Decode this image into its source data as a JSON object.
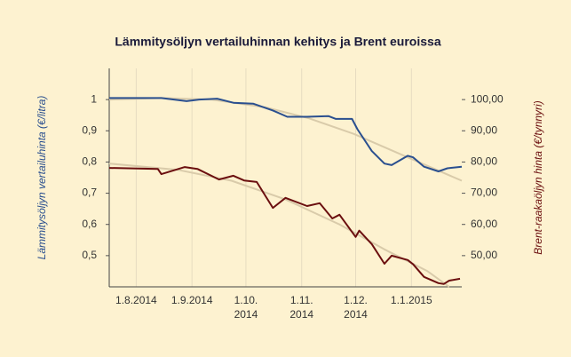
{
  "chart_data": {
    "type": "line",
    "title": "Lämmitysöljyn vertailuhinnan kehitys ja Brent euroissa",
    "ylabel": "Lämmitysöljyn vertailuhinta (€/litra)",
    "y2label": "Brent-raakaöljyn hinta (€/tynnyri)",
    "xlim": [
      "2014-07-17",
      "2015-01-29"
    ],
    "xticks": [
      {
        "value": "2014-08-01",
        "label": "1.8.2014"
      },
      {
        "value": "2014-09-01",
        "label": "1.9.2014"
      },
      {
        "value": "2014-10-01",
        "label": "1.10. 2014"
      },
      {
        "value": "2014-11-01",
        "label": "1.11. 2014"
      },
      {
        "value": "2014-12-01",
        "label": "1.12. 2014"
      },
      {
        "value": "2015-01-01",
        "label": "1.1.2015"
      }
    ],
    "ylim": [
      0.4,
      1.1
    ],
    "yticks": [
      {
        "value": 0.5,
        "label": "0,5"
      },
      {
        "value": 0.6,
        "label": "0,6"
      },
      {
        "value": 0.7,
        "label": "0,7"
      },
      {
        "value": 0.8,
        "label": "0,8"
      },
      {
        "value": 0.9,
        "label": "0,9"
      },
      1
    ],
    "y2lim": [
      40,
      110
    ],
    "y2ticks": [
      {
        "value": 50,
        "label": "50,00"
      },
      {
        "value": 60,
        "label": "60,00"
      },
      {
        "value": 70,
        "label": "70,00"
      },
      {
        "value": 80,
        "label": "80,00"
      },
      {
        "value": 90,
        "label": "90,00"
      },
      {
        "value": 100,
        "label": "100,00"
      }
    ],
    "x_grid": true,
    "series": [
      {
        "color": "#d9cbaa",
        "x": [
          "2014-07-17",
          "2014-08-15",
          "2014-09-12",
          "2014-10-12",
          "2014-11-05",
          "2014-11-30",
          "2014-12-24",
          "2015-01-29"
        ],
        "values": [
          1.0,
          1.005,
          1.0,
          0.975,
          0.94,
          0.89,
          0.83,
          0.74
        ]
      },
      {
        "color": "#d9cbaa",
        "axis": "y2",
        "x": [
          "2014-07-17",
          "2014-08-24",
          "2014-09-23",
          "2014-10-23",
          "2014-11-22",
          "2014-12-17",
          "2015-01-10",
          "2015-01-22"
        ],
        "values": [
          79.5,
          77.5,
          74,
          68,
          60,
          52,
          45,
          40
        ]
      },
      {
        "color": "#2a4f8f",
        "x": [
          "2014-07-17",
          "2014-08-15",
          "2014-08-29",
          "2014-09-05",
          "2014-09-15",
          "2014-09-24",
          "2014-10-05",
          "2014-10-16",
          "2014-10-24",
          "2014-11-04",
          "2014-11-16",
          "2014-11-20",
          "2014-11-29",
          "2014-12-02",
          "2014-12-10",
          "2014-12-17",
          "2014-12-21",
          "2014-12-30",
          "2015-01-02",
          "2015-01-08",
          "2015-01-16",
          "2015-01-21",
          "2015-01-29"
        ],
        "values": [
          1.005,
          1.005,
          0.995,
          1.0,
          1.003,
          0.99,
          0.987,
          0.965,
          0.945,
          0.945,
          0.947,
          0.938,
          0.938,
          0.905,
          0.835,
          0.795,
          0.79,
          0.82,
          0.815,
          0.785,
          0.77,
          0.78,
          0.785
        ]
      },
      {
        "color": "#6b0f0f",
        "axis": "y2",
        "x": [
          "2014-07-17",
          "2014-08-13",
          "2014-08-15",
          "2014-08-28",
          "2014-09-04",
          "2014-09-16",
          "2014-09-24",
          "2014-09-30",
          "2014-10-07",
          "2014-10-16",
          "2014-10-23",
          "2014-11-04",
          "2014-11-11",
          "2014-11-18",
          "2014-11-22",
          "2014-12-01",
          "2014-12-03",
          "2014-12-10",
          "2014-12-17",
          "2014-12-21",
          "2014-12-30",
          "2015-01-02",
          "2015-01-08",
          "2015-01-16",
          "2015-01-19",
          "2015-01-22",
          "2015-01-28"
        ],
        "values": [
          78.1,
          77.8,
          76.1,
          78.4,
          77.8,
          74.4,
          75.6,
          74.1,
          73.6,
          65.3,
          68.5,
          65.9,
          66.8,
          61.9,
          63.1,
          56.0,
          58.0,
          53.7,
          47.4,
          50.0,
          48.6,
          47.2,
          43.2,
          41.2,
          40.9,
          42.0,
          42.6
        ]
      }
    ]
  }
}
